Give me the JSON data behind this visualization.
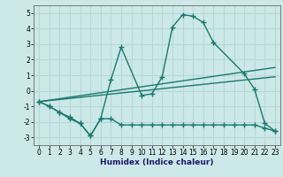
{
  "xlabel": "Humidex (Indice chaleur)",
  "bg_color": "#cce8e8",
  "grid_color": "#b8d8d8",
  "line_color": "#1a7a6e",
  "xlim": [
    -0.5,
    23.5
  ],
  "ylim": [
    -3.5,
    5.5
  ],
  "yticks": [
    -3,
    -2,
    -1,
    0,
    1,
    2,
    3,
    4,
    5
  ],
  "xticks": [
    0,
    1,
    2,
    3,
    4,
    5,
    6,
    7,
    8,
    9,
    10,
    11,
    12,
    13,
    14,
    15,
    16,
    17,
    18,
    19,
    20,
    21,
    22,
    23
  ],
  "line1_x": [
    0,
    1,
    2,
    3,
    4,
    5,
    6,
    7,
    8,
    10,
    11,
    12,
    13,
    14,
    15,
    16,
    17,
    20,
    21,
    22,
    23
  ],
  "line1_y": [
    -0.7,
    -1.0,
    -1.4,
    -1.7,
    -2.1,
    -2.9,
    -1.8,
    0.7,
    2.8,
    -0.3,
    -0.2,
    0.9,
    4.1,
    4.9,
    4.8,
    4.4,
    3.1,
    1.1,
    0.1,
    -2.1,
    -2.6
  ],
  "line2_x": [
    0,
    1,
    2,
    3,
    4,
    5,
    6,
    7,
    8,
    9,
    10,
    11,
    12,
    13,
    14,
    15,
    16,
    17,
    18,
    19,
    20,
    21,
    22,
    23
  ],
  "line2_y": [
    -0.7,
    -1.0,
    -1.4,
    -1.8,
    -2.1,
    -2.9,
    -1.8,
    -1.8,
    -2.2,
    -2.2,
    -2.2,
    -2.2,
    -2.2,
    -2.2,
    -2.2,
    -2.2,
    -2.2,
    -2.2,
    -2.2,
    -2.2,
    -2.2,
    -2.2,
    -2.4,
    -2.6
  ],
  "line3_x": [
    0,
    23
  ],
  "line3_y": [
    -0.7,
    1.5
  ],
  "line4_x": [
    0,
    23
  ],
  "line4_y": [
    -0.7,
    0.9
  ]
}
